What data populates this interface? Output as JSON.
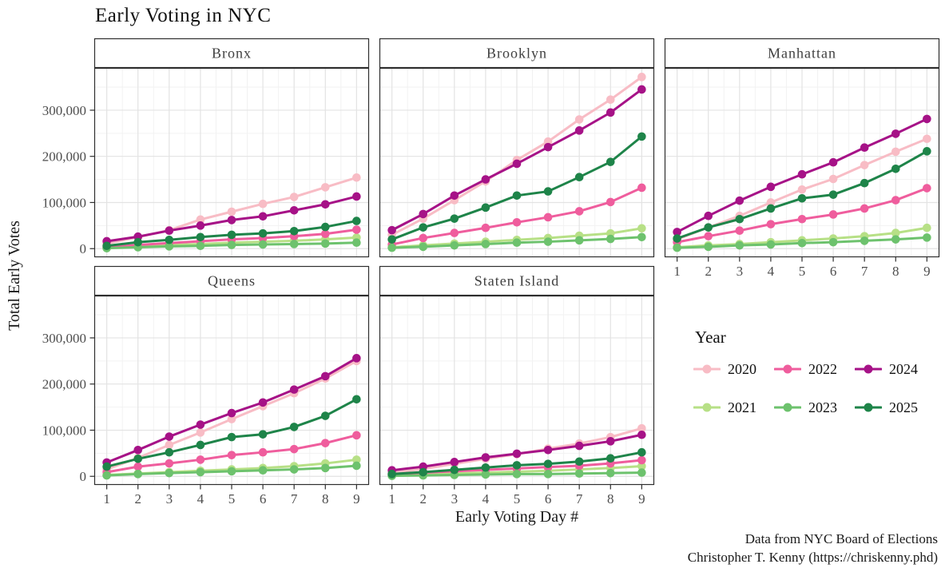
{
  "title": "Early Voting in NYC",
  "caption": {
    "line1": "Data from NYC Board of Elections",
    "line2": "Christopher T. Kenny (https://chriskenny.phd)"
  },
  "chart_data": {
    "type": "line",
    "title": "Early Voting in NYC",
    "xlabel": "Early Voting Day #",
    "ylabel": "Total Early Votes",
    "x": [
      1,
      2,
      3,
      4,
      5,
      6,
      7,
      8,
      9
    ],
    "x_tick_labels": [
      "1",
      "2",
      "3",
      "4",
      "5",
      "6",
      "7",
      "8",
      "9"
    ],
    "y_ticks": [
      0,
      100000,
      200000,
      300000
    ],
    "y_tick_labels": [
      "0",
      "100,000",
      "200,000",
      "300,000"
    ],
    "y_minor_ticks": [
      50000,
      150000,
      250000,
      350000
    ],
    "x_minor_ticks": [
      1.5,
      2.5,
      3.5,
      4.5,
      5.5,
      6.5,
      7.5,
      8.5
    ],
    "xlim": [
      0.6,
      9.4
    ],
    "ylim": [
      -18650,
      391650
    ],
    "grid": true,
    "legend": {
      "title": "Year",
      "position": "right-middle",
      "rows": [
        [
          "2020",
          "2022",
          "2024"
        ],
        [
          "2021",
          "2023",
          "2025"
        ]
      ]
    },
    "colors": {
      "2020": "#F8BCC5",
      "2021": "#B7E086",
      "2022": "#EF5D9D",
      "2023": "#6DC26D",
      "2024": "#A61287",
      "2025": "#1E8449"
    },
    "series_draw_order": [
      "2020",
      "2021",
      "2022",
      "2023",
      "2024",
      "2025"
    ],
    "facets": [
      {
        "name": "Bronx",
        "series": {
          "2020": [
            11000,
            25000,
            40000,
            63000,
            80000,
            97000,
            112000,
            133000,
            154000
          ],
          "2021": [
            2000,
            5000,
            8000,
            10000,
            13000,
            15000,
            17000,
            20000,
            24000
          ],
          "2022": [
            3000,
            8000,
            12000,
            16000,
            20000,
            23000,
            27000,
            32000,
            41000
          ],
          "2023": [
            1000,
            3000,
            5000,
            6000,
            8000,
            9000,
            10000,
            11000,
            13000
          ],
          "2024": [
            16000,
            26000,
            39000,
            50000,
            62000,
            70000,
            83000,
            96000,
            113000
          ],
          "2025": [
            6000,
            14000,
            19000,
            25000,
            30000,
            33000,
            38000,
            47000,
            60000
          ]
        }
      },
      {
        "name": "Brooklyn",
        "series": {
          "2020": [
            30000,
            65000,
            105000,
            146000,
            192000,
            232000,
            280000,
            323000,
            372000
          ],
          "2021": [
            3000,
            7000,
            11000,
            15000,
            19000,
            23000,
            28000,
            33000,
            44000
          ],
          "2022": [
            9000,
            23000,
            34000,
            45000,
            57000,
            68000,
            81000,
            101000,
            132000
          ],
          "2023": [
            2000,
            4000,
            7000,
            10000,
            13000,
            15000,
            18000,
            21000,
            25000
          ],
          "2024": [
            40000,
            75000,
            115000,
            150000,
            184000,
            220000,
            256000,
            295000,
            345000
          ],
          "2025": [
            20000,
            46000,
            65000,
            89000,
            115000,
            124000,
            155000,
            188000,
            243000
          ]
        }
      },
      {
        "name": "Manhattan",
        "series": {
          "2020": [
            20000,
            46000,
            71000,
            100000,
            128000,
            151000,
            181000,
            210000,
            238000
          ],
          "2021": [
            3000,
            7000,
            10000,
            14000,
            18000,
            22000,
            27000,
            34000,
            45000
          ],
          "2022": [
            14000,
            27000,
            39000,
            53000,
            64000,
            74000,
            87000,
            105000,
            131000
          ],
          "2023": [
            2000,
            4000,
            7000,
            9000,
            12000,
            14000,
            17000,
            20000,
            24000
          ],
          "2024": [
            36000,
            71000,
            104000,
            134000,
            161000,
            187000,
            219000,
            249000,
            281000
          ],
          "2025": [
            22000,
            46000,
            64000,
            87000,
            109000,
            117000,
            142000,
            173000,
            211000
          ]
        }
      },
      {
        "name": "Queens",
        "series": {
          "2020": [
            15000,
            40000,
            68000,
            95000,
            124000,
            152000,
            180000,
            212000,
            250000
          ],
          "2021": [
            3000,
            6000,
            9000,
            12000,
            15000,
            18000,
            22000,
            28000,
            36000
          ],
          "2022": [
            9000,
            21000,
            28000,
            36000,
            46000,
            52000,
            59000,
            72000,
            89000
          ],
          "2023": [
            2000,
            5000,
            7000,
            9000,
            11000,
            13000,
            15000,
            18000,
            23000
          ],
          "2024": [
            30000,
            57000,
            86000,
            112000,
            137000,
            160000,
            188000,
            217000,
            256000
          ],
          "2025": [
            21000,
            38000,
            52000,
            68000,
            85000,
            91000,
            107000,
            131000,
            167000
          ]
        }
      },
      {
        "name": "Staten Island",
        "series": {
          "2020": [
            8000,
            16000,
            27000,
            38000,
            48000,
            60000,
            71000,
            85000,
            104000
          ],
          "2021": [
            2000,
            4000,
            6000,
            8000,
            10000,
            12000,
            15000,
            18000,
            22000
          ],
          "2022": [
            4000,
            8000,
            11000,
            14000,
            17000,
            20000,
            23000,
            28000,
            35000
          ],
          "2023": [
            1000,
            2000,
            3000,
            4000,
            5000,
            5000,
            6000,
            7000,
            8000
          ],
          "2024": [
            13000,
            21000,
            31000,
            41000,
            49000,
            57000,
            66000,
            76000,
            90000
          ],
          "2025": [
            5000,
            9000,
            14000,
            19000,
            24000,
            27000,
            32000,
            39000,
            52000
          ]
        }
      }
    ]
  }
}
